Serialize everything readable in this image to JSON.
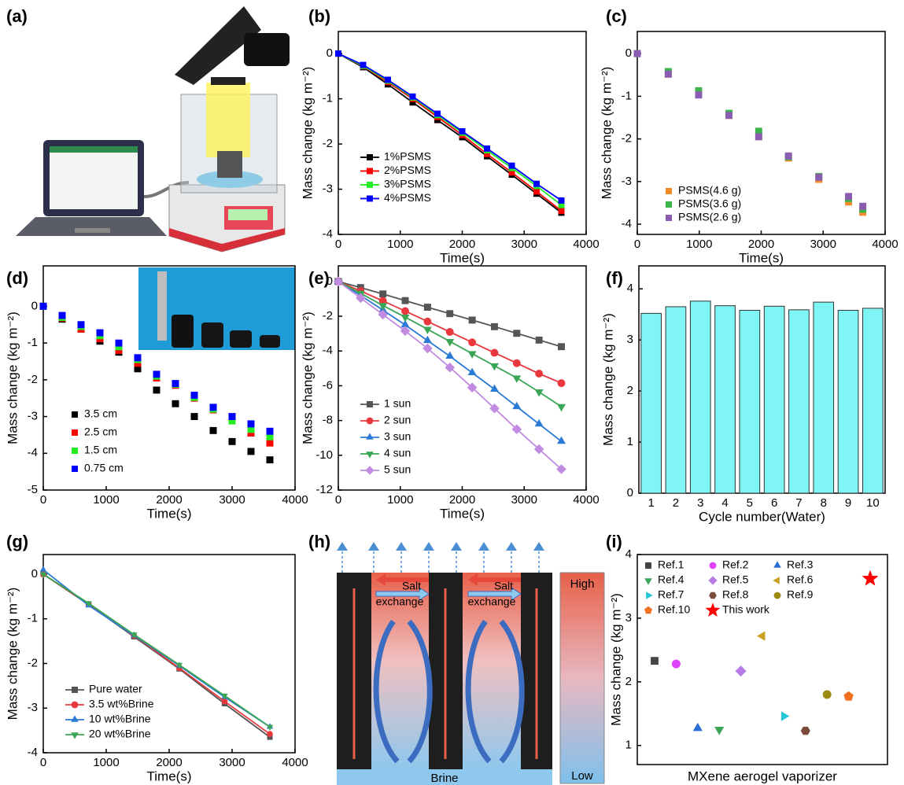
{
  "panel_a": {
    "label": "(a)"
  },
  "diagram_h": {
    "label": "(h)",
    "salt_1": "Salt",
    "exchange_1": "exchange",
    "salt_2": "Salt",
    "exchange_2": "exchange",
    "high": "High",
    "low": "Low",
    "brine": "Brine"
  },
  "chart_data": [
    {
      "type": "line",
      "panel_label": "(b)",
      "xlabel": "Time(s)",
      "ylabel": "Mass change (kg m⁻²)",
      "x": [
        0,
        400,
        800,
        1200,
        1600,
        2000,
        2400,
        2800,
        3200,
        3600
      ],
      "xlim": [
        0,
        4000
      ],
      "xticks": [
        0,
        1000,
        2000,
        3000,
        4000
      ],
      "ylim": [
        -4,
        0.49
      ],
      "yticks": [
        0,
        -1,
        -2,
        -3,
        -4
      ],
      "legend": "center-left",
      "series": [
        {
          "name": "1%PSMS",
          "color": "#000000",
          "marker": "square",
          "values": [
            0,
            -0.3,
            -0.68,
            -1.08,
            -1.47,
            -1.85,
            -2.27,
            -2.68,
            -3.1,
            -3.52
          ]
        },
        {
          "name": "2%PSMS",
          "color": "#ff0000",
          "marker": "square",
          "values": [
            0,
            -0.28,
            -0.63,
            -1.0,
            -1.4,
            -1.8,
            -2.22,
            -2.63,
            -3.05,
            -3.48
          ]
        },
        {
          "name": "3%PSMS",
          "color": "#22ee22",
          "marker": "square",
          "values": [
            0,
            -0.27,
            -0.6,
            -0.97,
            -1.36,
            -1.75,
            -2.14,
            -2.53,
            -2.93,
            -3.35
          ]
        },
        {
          "name": "4%PSMS",
          "color": "#0000ff",
          "marker": "square",
          "values": [
            0,
            -0.25,
            -0.58,
            -0.95,
            -1.33,
            -1.72,
            -2.1,
            -2.48,
            -2.88,
            -3.25
          ]
        }
      ]
    },
    {
      "type": "scatter",
      "panel_label": "(c)",
      "xlabel": "Time(s)",
      "ylabel": "Mass change (kg m⁻²)",
      "x": [
        0,
        500,
        990,
        1480,
        1960,
        2440,
        2930,
        3410,
        3640
      ],
      "xlim": [
        0,
        4000
      ],
      "xticks": [
        0,
        1000,
        2000,
        3000,
        4000
      ],
      "ylim": [
        -4.24,
        0.52
      ],
      "yticks": [
        0,
        -1,
        -2,
        -3,
        -4
      ],
      "legend": "lower-left",
      "series": [
        {
          "name": "PSMS(4.6 g)",
          "color": "#f28c28",
          "marker": "square",
          "values": [
            0,
            -0.48,
            -0.95,
            -1.45,
            -1.95,
            -2.45,
            -2.95,
            -3.48,
            -3.72
          ]
        },
        {
          "name": "PSMS(3.6 g)",
          "color": "#3cb44b",
          "marker": "square",
          "values": [
            0,
            -0.42,
            -0.87,
            -1.4,
            -1.82,
            -2.42,
            -2.88,
            -3.4,
            -3.65
          ]
        },
        {
          "name": "PSMS(2.6 g)",
          "color": "#8a5db0",
          "marker": "square",
          "values": [
            0,
            -0.48,
            -0.97,
            -1.45,
            -1.95,
            -2.4,
            -2.9,
            -3.35,
            -3.58
          ]
        }
      ]
    },
    {
      "type": "scatter",
      "panel_label": "(d)",
      "xlabel": "Time(s)",
      "ylabel": "Mass change (kg m⁻²)",
      "x": [
        0,
        300,
        600,
        900,
        1200,
        1500,
        1800,
        2100,
        2400,
        2700,
        3000,
        3300,
        3600
      ],
      "xlim": [
        0,
        4000
      ],
      "xticks": [
        0,
        1000,
        2000,
        3000,
        4000
      ],
      "ylim": [
        -5,
        1.1
      ],
      "yticks": [
        0,
        -1,
        -2,
        -3,
        -4,
        -5
      ],
      "legend": "lower-left",
      "series": [
        {
          "name": "3.5 cm",
          "color": "#000000",
          "marker": "square",
          "values": [
            0,
            -0.35,
            -0.62,
            -0.95,
            -1.25,
            -1.7,
            -2.28,
            -2.65,
            -3.0,
            -3.38,
            -3.68,
            -3.95,
            -4.18
          ]
        },
        {
          "name": "2.5 cm",
          "color": "#ff0000",
          "marker": "square",
          "values": [
            0,
            -0.32,
            -0.62,
            -0.88,
            -1.2,
            -1.55,
            -1.95,
            -2.15,
            -2.5,
            -2.82,
            -3.1,
            -3.45,
            -3.72
          ]
        },
        {
          "name": "1.5 cm",
          "color": "#22ee22",
          "marker": "square",
          "values": [
            0,
            -0.3,
            -0.55,
            -0.8,
            -1.1,
            -1.45,
            -1.9,
            -2.12,
            -2.48,
            -2.8,
            -3.12,
            -3.35,
            -3.55
          ]
        },
        {
          "name": "0.75 cm",
          "color": "#0000ff",
          "marker": "square",
          "values": [
            0,
            -0.25,
            -0.5,
            -0.72,
            -1.0,
            -1.4,
            -1.85,
            -2.1,
            -2.42,
            -2.75,
            -3.0,
            -3.2,
            -3.4
          ]
        }
      ]
    },
    {
      "type": "line",
      "panel_label": "(e)",
      "xlabel": "Time(s)",
      "ylabel": "Mass change (kg m⁻²)",
      "x": [
        0,
        360,
        720,
        1080,
        1440,
        1800,
        2160,
        2520,
        2880,
        3240,
        3600
      ],
      "xlim": [
        0,
        4000
      ],
      "xticks": [
        0,
        1000,
        2000,
        3000,
        4000
      ],
      "ylim": [
        -12,
        0.9
      ],
      "yticks": [
        0,
        -2,
        -4,
        -6,
        -8,
        -10,
        -12
      ],
      "legend": "lower-left",
      "series": [
        {
          "name": "1 sun",
          "color": "#555555",
          "marker": "square",
          "values": [
            0,
            -0.35,
            -0.72,
            -1.1,
            -1.48,
            -1.85,
            -2.22,
            -2.6,
            -2.98,
            -3.37,
            -3.75
          ]
        },
        {
          "name": "2 sun",
          "color": "#e8383d",
          "marker": "circle",
          "values": [
            0,
            -0.55,
            -1.12,
            -1.7,
            -2.3,
            -2.9,
            -3.5,
            -4.1,
            -4.7,
            -5.3,
            -5.85
          ]
        },
        {
          "name": "3 sun",
          "color": "#2b7bd6",
          "marker": "triangle-up",
          "values": [
            0,
            -0.8,
            -1.65,
            -2.5,
            -3.4,
            -4.3,
            -5.25,
            -6.2,
            -7.2,
            -8.2,
            -9.2
          ]
        },
        {
          "name": "4 sun",
          "color": "#3aa655",
          "marker": "triangle-down",
          "values": [
            0,
            -0.68,
            -1.38,
            -2.05,
            -2.75,
            -3.45,
            -4.15,
            -4.85,
            -5.55,
            -6.35,
            -7.2
          ]
        },
        {
          "name": "5 sun",
          "color": "#c08be0",
          "marker": "diamond",
          "values": [
            0,
            -0.95,
            -1.9,
            -2.85,
            -3.85,
            -4.95,
            -6.1,
            -7.3,
            -8.5,
            -9.65,
            -10.8
          ]
        }
      ]
    },
    {
      "type": "bar",
      "panel_label": "(f)",
      "xlabel": "Cycle number(Water)",
      "ylabel": "Mass change (kg m⁻²)",
      "categories": [
        "1",
        "2",
        "3",
        "4",
        "5",
        "6",
        "7",
        "8",
        "9",
        "10"
      ],
      "values": [
        3.52,
        3.65,
        3.76,
        3.67,
        3.58,
        3.66,
        3.59,
        3.74,
        3.58,
        3.62
      ],
      "color": "#7ff5f5",
      "ylim": [
        0,
        4.45
      ],
      "yticks": [
        0,
        1,
        2,
        3,
        4
      ]
    },
    {
      "type": "line",
      "panel_label": "(g)",
      "xlabel": "Time(s)",
      "ylabel": "Mass change (kg m⁻²)",
      "x": [
        0,
        720,
        1440,
        2160,
        2880,
        3600
      ],
      "xlim": [
        0,
        4000
      ],
      "xticks": [
        0,
        1000,
        2000,
        3000,
        4000
      ],
      "ylim": [
        -4,
        0.44
      ],
      "yticks": [
        0,
        -1,
        -2,
        -3,
        -4
      ],
      "legend": "lower-left",
      "series": [
        {
          "name": "Pure water",
          "color": "#555555",
          "marker": "square",
          "values": [
            0,
            -0.68,
            -1.4,
            -2.12,
            -2.9,
            -3.65
          ]
        },
        {
          "name": "3.5 wt%Brine",
          "color": "#e8383d",
          "marker": "circle",
          "values": [
            0,
            -0.67,
            -1.38,
            -2.1,
            -2.85,
            -3.58
          ]
        },
        {
          "name": "10 wt%Brine",
          "color": "#2b7bd6",
          "marker": "triangle-up",
          "values": [
            0.1,
            -0.7,
            -1.37,
            -2.05,
            -2.75,
            -3.42
          ]
        },
        {
          "name": "20 wt%Brine",
          "color": "#3aa655",
          "marker": "triangle-down",
          "values": [
            0,
            -0.65,
            -1.35,
            -2.03,
            -2.72,
            -3.42
          ]
        }
      ]
    },
    {
      "type": "scatter",
      "panel_label": "(i)",
      "xlabel": "MXene aerogel vaporizer",
      "ylabel": "Mass change (kg m⁻²)",
      "ylim": [
        0.7,
        4
      ],
      "yticks": [
        1,
        2,
        3,
        4
      ],
      "legend": "upper-left",
      "series": [
        {
          "name": "Ref.1",
          "color": "#444444",
          "marker": "square",
          "values": [
            2.33
          ]
        },
        {
          "name": "Ref.2",
          "color": "#e040fb",
          "marker": "circle",
          "values": [
            2.28
          ]
        },
        {
          "name": "Ref.3",
          "color": "#2b6fd6",
          "marker": "triangle-up",
          "values": [
            1.27
          ]
        },
        {
          "name": "Ref.4",
          "color": "#3aa655",
          "marker": "triangle-down",
          "values": [
            1.25
          ]
        },
        {
          "name": "Ref.5",
          "color": "#b77be8",
          "marker": "diamond",
          "values": [
            2.17
          ]
        },
        {
          "name": "Ref.6",
          "color": "#c9a020",
          "marker": "triangle-left",
          "values": [
            2.72
          ]
        },
        {
          "name": "Ref.7",
          "color": "#22c6d6",
          "marker": "triangle-right",
          "values": [
            1.46
          ]
        },
        {
          "name": "Ref.8",
          "color": "#7a4a3a",
          "marker": "hexagon",
          "values": [
            1.23
          ]
        },
        {
          "name": "Ref.9",
          "color": "#9a8a10",
          "marker": "circle",
          "values": [
            1.8
          ]
        },
        {
          "name": "Ref.10",
          "color": "#f07020",
          "marker": "pentagon",
          "values": [
            1.77
          ]
        },
        {
          "name": "This work",
          "color": "#ff0000",
          "marker": "star",
          "values": [
            3.62
          ]
        }
      ]
    }
  ]
}
